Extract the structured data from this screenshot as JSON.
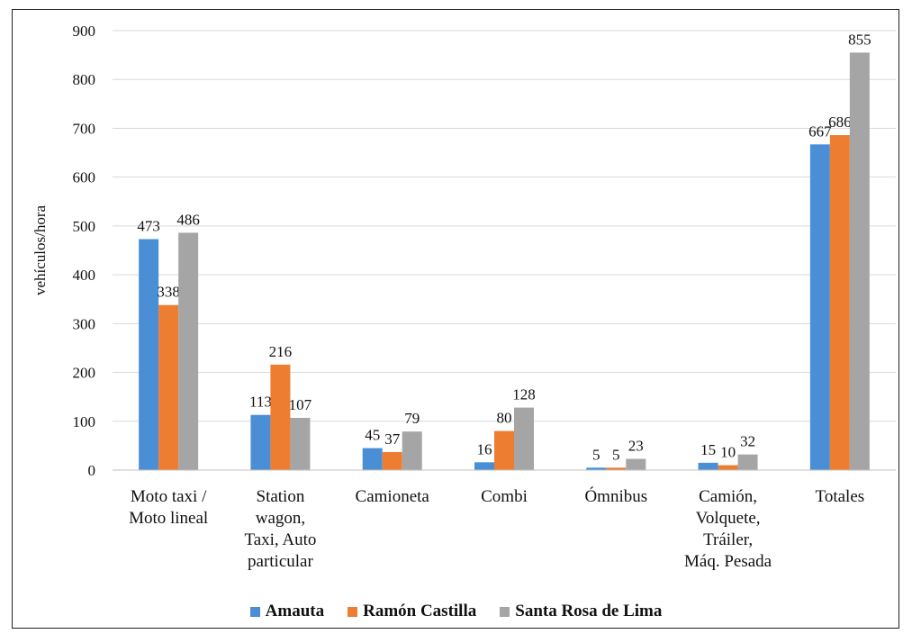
{
  "chart_data": {
    "type": "bar",
    "title": "",
    "xlabel": "",
    "ylabel": "vehículos/hora",
    "ylim": [
      0,
      900
    ],
    "yticks": [
      0,
      100,
      200,
      300,
      400,
      500,
      600,
      700,
      800,
      900
    ],
    "grid": true,
    "legend_position": "bottom",
    "categories": [
      [
        "Moto taxi /",
        "Moto lineal"
      ],
      [
        "Station",
        "wagon,",
        "Taxi, Auto",
        "particular"
      ],
      [
        "Camioneta"
      ],
      [
        "Combi"
      ],
      [
        "Ómnibus"
      ],
      [
        "Camión,",
        "Volquete,",
        "Tráiler,",
        "Máq. Pesada"
      ],
      [
        "Totales"
      ]
    ],
    "series": [
      {
        "name": "Amauta",
        "color": "#4a8fd6",
        "values": [
          473,
          113,
          45,
          16,
          5,
          15,
          667
        ]
      },
      {
        "name": "Ramón Castilla",
        "color": "#ed7d31",
        "values": [
          338,
          216,
          37,
          80,
          5,
          10,
          686
        ]
      },
      {
        "name": "Santa Rosa de Lima",
        "color": "#a5a5a5",
        "values": [
          486,
          107,
          79,
          128,
          23,
          32,
          855
        ]
      }
    ]
  }
}
